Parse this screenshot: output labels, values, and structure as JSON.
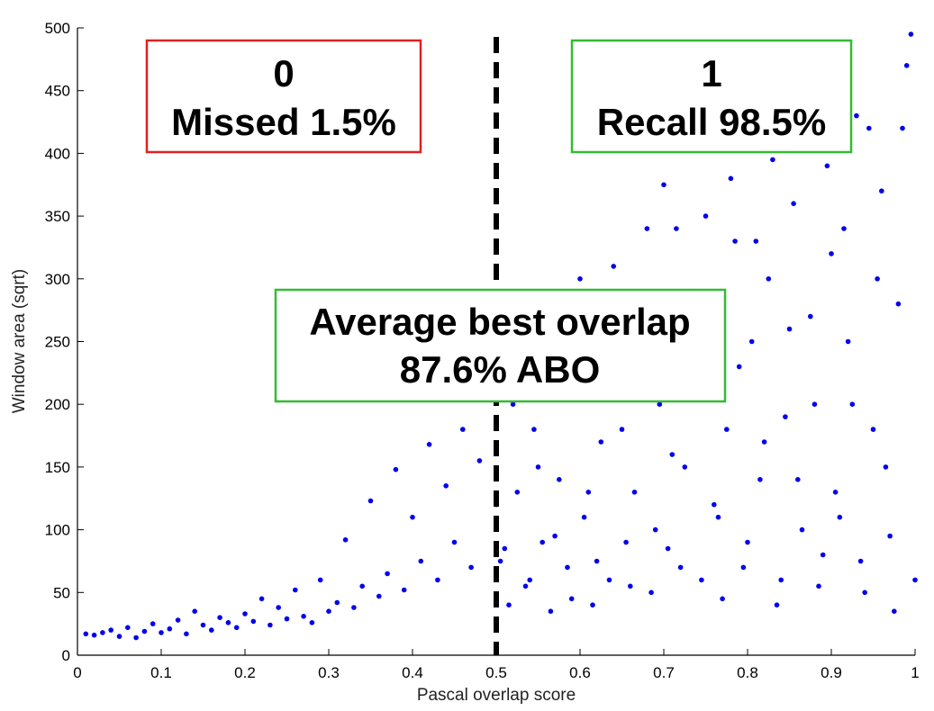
{
  "chart_data": {
    "type": "scatter",
    "title": "",
    "xlabel": "Pascal overlap score",
    "ylabel": "Window area (sqrt)",
    "xlim": [
      0,
      1
    ],
    "ylim": [
      0,
      500
    ],
    "xticks": [
      0,
      0.1,
      0.2,
      0.3,
      0.4,
      0.5,
      0.6,
      0.7,
      0.8,
      0.9,
      1
    ],
    "xtick_labels": [
      "0",
      "0.1",
      "0.2",
      "0.3",
      "0.4",
      "0.5",
      "0.6",
      "0.7",
      "0.8",
      "0.9",
      "1"
    ],
    "yticks": [
      0,
      50,
      100,
      150,
      200,
      250,
      300,
      350,
      400,
      450,
      500
    ],
    "ytick_labels": [
      "0",
      "50",
      "100",
      "150",
      "200",
      "250",
      "300",
      "350",
      "400",
      "450",
      "500"
    ],
    "grid": false,
    "threshold": {
      "x": 0.5,
      "style": "dashed",
      "color": "#000000"
    },
    "series": [
      {
        "color": "#0000ee",
        "points": [
          [
            0.01,
            17
          ],
          [
            0.02,
            16
          ],
          [
            0.03,
            18
          ],
          [
            0.04,
            20
          ],
          [
            0.05,
            15
          ],
          [
            0.06,
            22
          ],
          [
            0.07,
            14
          ],
          [
            0.08,
            19
          ],
          [
            0.09,
            25
          ],
          [
            0.1,
            18
          ],
          [
            0.11,
            21
          ],
          [
            0.12,
            28
          ],
          [
            0.13,
            17
          ],
          [
            0.14,
            35
          ],
          [
            0.15,
            24
          ],
          [
            0.16,
            20
          ],
          [
            0.17,
            30
          ],
          [
            0.18,
            26
          ],
          [
            0.19,
            22
          ],
          [
            0.2,
            33
          ],
          [
            0.21,
            27
          ],
          [
            0.22,
            45
          ],
          [
            0.23,
            24
          ],
          [
            0.24,
            38
          ],
          [
            0.25,
            29
          ],
          [
            0.26,
            52
          ],
          [
            0.27,
            31
          ],
          [
            0.28,
            26
          ],
          [
            0.29,
            60
          ],
          [
            0.3,
            35
          ],
          [
            0.31,
            42
          ],
          [
            0.32,
            92
          ],
          [
            0.33,
            38
          ],
          [
            0.34,
            55
          ],
          [
            0.35,
            123
          ],
          [
            0.36,
            47
          ],
          [
            0.37,
            65
          ],
          [
            0.38,
            148
          ],
          [
            0.39,
            52
          ],
          [
            0.4,
            110
          ],
          [
            0.41,
            75
          ],
          [
            0.42,
            168
          ],
          [
            0.43,
            60
          ],
          [
            0.44,
            135
          ],
          [
            0.45,
            90
          ],
          [
            0.46,
            180
          ],
          [
            0.47,
            70
          ],
          [
            0.48,
            155
          ],
          [
            0.49,
            240
          ],
          [
            0.5,
            120
          ],
          [
            0.51,
            85
          ],
          [
            0.52,
            200
          ],
          [
            0.53,
            260
          ],
          [
            0.54,
            60
          ],
          [
            0.55,
            150
          ],
          [
            0.56,
            280
          ],
          [
            0.57,
            95
          ],
          [
            0.58,
            220
          ],
          [
            0.59,
            45
          ],
          [
            0.6,
            300
          ],
          [
            0.61,
            130
          ],
          [
            0.62,
            75
          ],
          [
            0.63,
            260
          ],
          [
            0.64,
            310
          ],
          [
            0.65,
            180
          ],
          [
            0.66,
            55
          ],
          [
            0.67,
            240
          ],
          [
            0.68,
            340
          ],
          [
            0.69,
            100
          ],
          [
            0.7,
            375
          ],
          [
            0.71,
            160
          ],
          [
            0.72,
            70
          ],
          [
            0.73,
            290
          ],
          [
            0.74,
            210
          ],
          [
            0.75,
            350
          ],
          [
            0.76,
            120
          ],
          [
            0.77,
            45
          ],
          [
            0.78,
            380
          ],
          [
            0.79,
            230
          ],
          [
            0.8,
            90
          ],
          [
            0.81,
            330
          ],
          [
            0.82,
            170
          ],
          [
            0.83,
            395
          ],
          [
            0.84,
            60
          ],
          [
            0.85,
            260
          ],
          [
            0.86,
            140
          ],
          [
            0.87,
            410
          ],
          [
            0.88,
            200
          ],
          [
            0.89,
            80
          ],
          [
            0.9,
            320
          ],
          [
            0.91,
            110
          ],
          [
            0.92,
            250
          ],
          [
            0.93,
            430
          ],
          [
            0.94,
            50
          ],
          [
            0.95,
            180
          ],
          [
            0.96,
            370
          ],
          [
            0.97,
            95
          ],
          [
            0.98,
            280
          ],
          [
            0.99,
            470
          ],
          [
            1.0,
            60
          ],
          [
            0.995,
            495
          ],
          [
            0.985,
            420
          ],
          [
            0.975,
            35
          ],
          [
            0.965,
            150
          ],
          [
            0.955,
            300
          ],
          [
            0.945,
            420
          ],
          [
            0.935,
            75
          ],
          [
            0.925,
            200
          ],
          [
            0.915,
            340
          ],
          [
            0.905,
            130
          ],
          [
            0.895,
            390
          ],
          [
            0.885,
            55
          ],
          [
            0.875,
            270
          ],
          [
            0.865,
            100
          ],
          [
            0.855,
            360
          ],
          [
            0.845,
            190
          ],
          [
            0.835,
            40
          ],
          [
            0.825,
            300
          ],
          [
            0.815,
            140
          ],
          [
            0.805,
            250
          ],
          [
            0.795,
            70
          ],
          [
            0.785,
            330
          ],
          [
            0.775,
            180
          ],
          [
            0.765,
            110
          ],
          [
            0.755,
            290
          ],
          [
            0.745,
            60
          ],
          [
            0.735,
            230
          ],
          [
            0.725,
            150
          ],
          [
            0.715,
            340
          ],
          [
            0.705,
            85
          ],
          [
            0.695,
            200
          ],
          [
            0.685,
            50
          ],
          [
            0.675,
            270
          ],
          [
            0.665,
            130
          ],
          [
            0.655,
            90
          ],
          [
            0.645,
            230
          ],
          [
            0.635,
            60
          ],
          [
            0.625,
            170
          ],
          [
            0.615,
            40
          ],
          [
            0.605,
            110
          ],
          [
            0.595,
            250
          ],
          [
            0.585,
            70
          ],
          [
            0.575,
            140
          ],
          [
            0.565,
            35
          ],
          [
            0.555,
            90
          ],
          [
            0.545,
            180
          ],
          [
            0.535,
            55
          ],
          [
            0.525,
            130
          ],
          [
            0.515,
            40
          ],
          [
            0.505,
            75
          ]
        ]
      }
    ],
    "annotations": [
      {
        "line1": "0",
        "line2": "Missed 1.5%",
        "border": "#e02020"
      },
      {
        "line1": "1",
        "line2": "Recall 98.5%",
        "border": "#33bb33"
      },
      {
        "line1": "Average best overlap",
        "line2": "87.6% ABO",
        "border": "#33bb33"
      }
    ]
  }
}
